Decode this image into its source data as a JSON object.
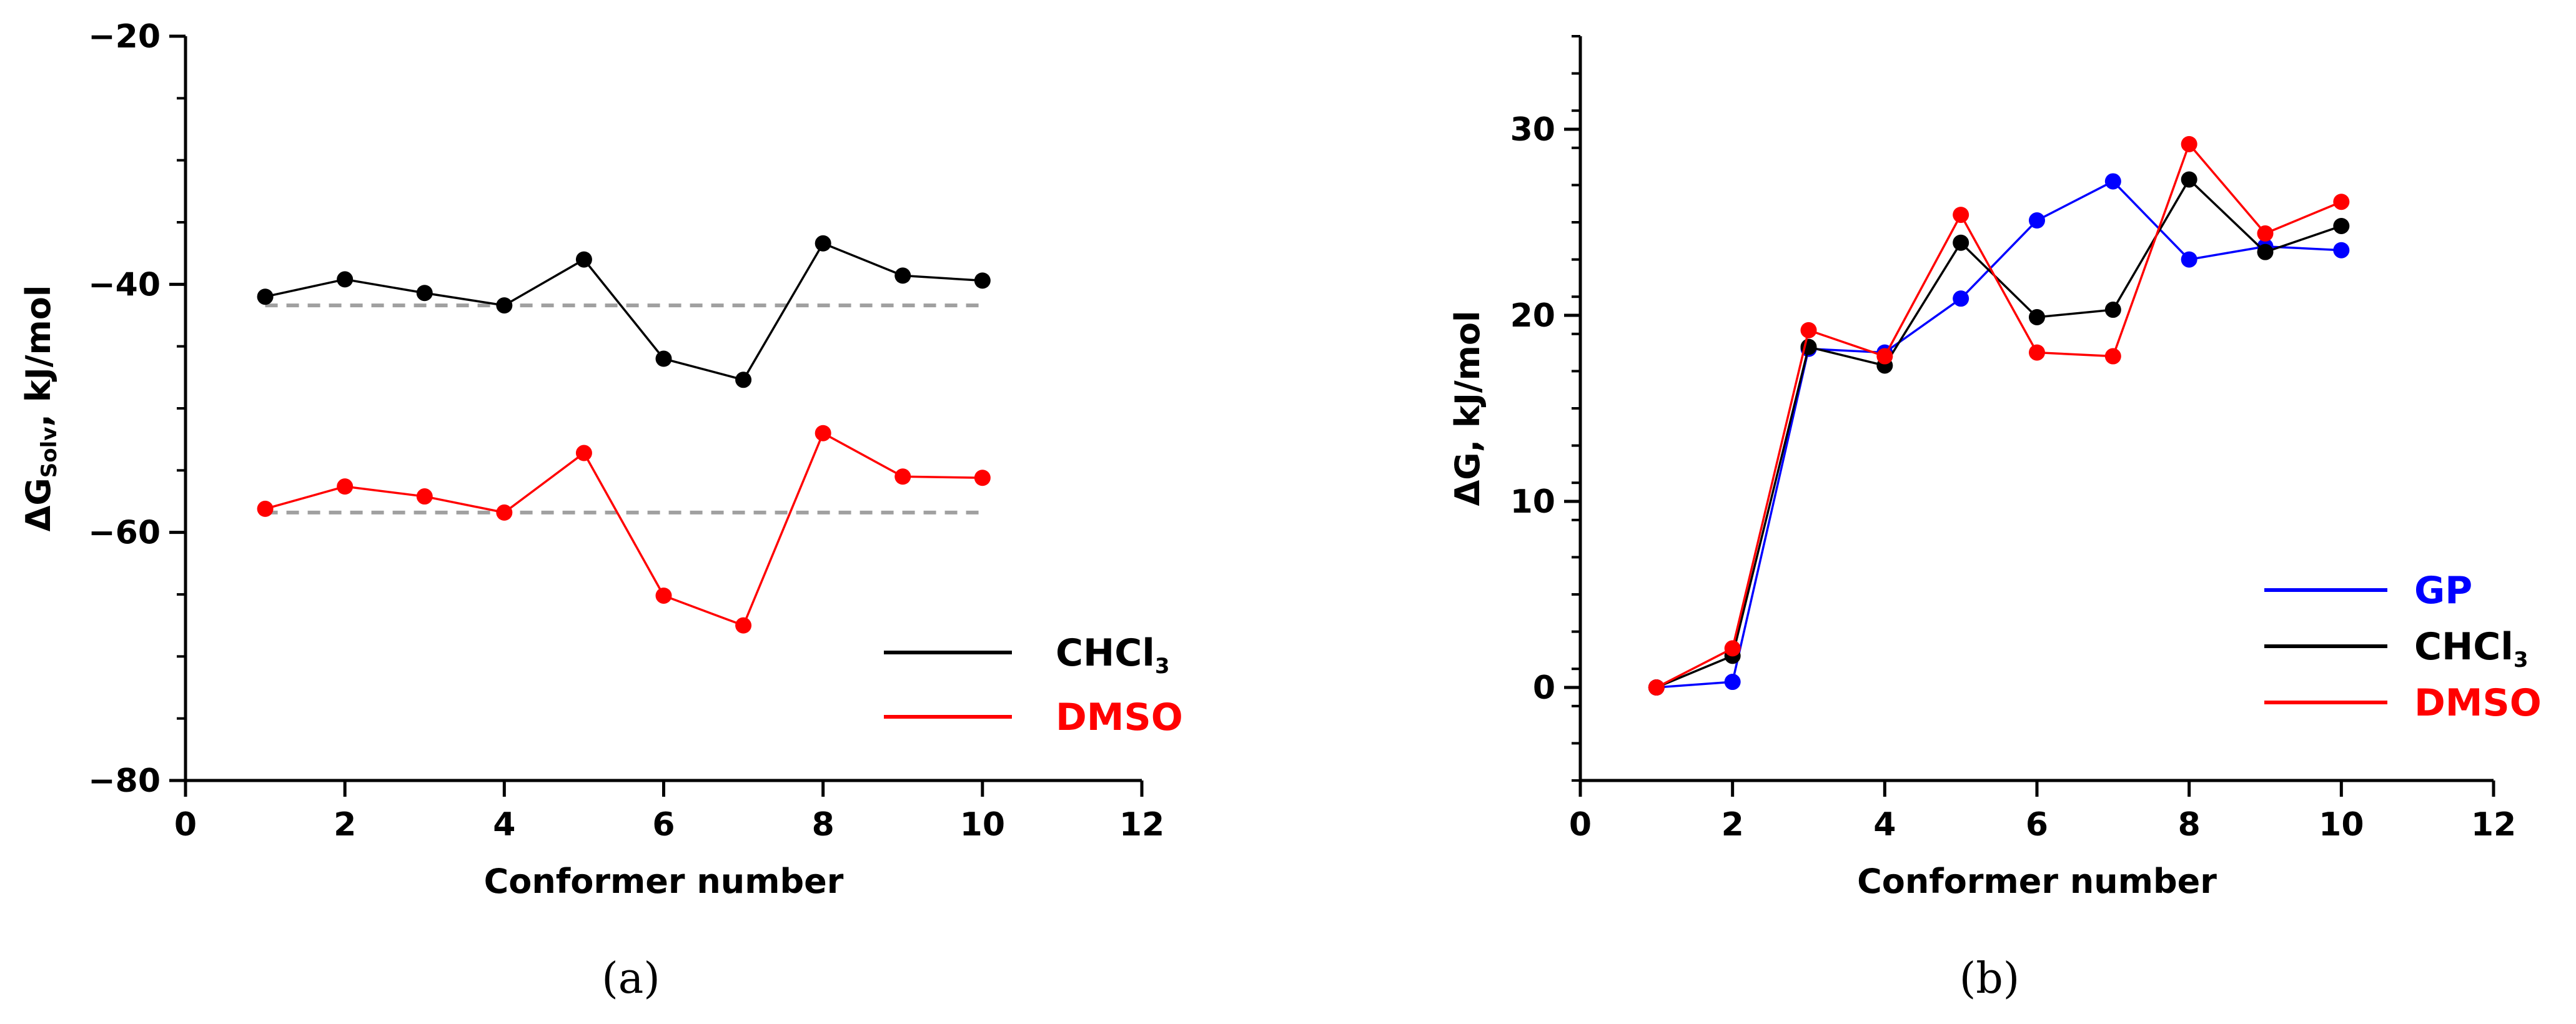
{
  "colors": {
    "chcl3": "#000000",
    "dmso": "#ff0000",
    "gp": "#0000ff",
    "reference": "#a0a0a0"
  },
  "panels": [
    {
      "caption": "(a)"
    },
    {
      "caption": "(b)"
    }
  ],
  "chart_data": [
    {
      "type": "line",
      "panel": "a",
      "xlabel": "Conformer number",
      "ylabel_main": "ΔG",
      "ylabel_sub": "Solv",
      "ylabel_tail": ", kJ/mol",
      "xlim": [
        0,
        12
      ],
      "ylim": [
        -80,
        -20
      ],
      "x_ticks": [
        0,
        2,
        4,
        6,
        8,
        10,
        12
      ],
      "x_tick_labels": [
        "0",
        "2",
        "4",
        "6",
        "8",
        "10",
        "12"
      ],
      "y_ticks": [
        -80,
        -60,
        -40,
        -20
      ],
      "y_tick_labels": [
        "−80",
        "−60",
        "−40",
        "−20"
      ],
      "y_minor_step": 5,
      "grid": false,
      "legend_position": "bottom-right",
      "x": [
        1,
        2,
        3,
        4,
        5,
        6,
        7,
        8,
        9,
        10
      ],
      "series": [
        {
          "name": "CHCl",
          "name_sub": "3",
          "color": "#000000",
          "values": [
            -41.0,
            -39.6,
            -40.7,
            -41.7,
            -38.0,
            -46.0,
            -47.7,
            -36.7,
            -39.3,
            -39.7
          ]
        },
        {
          "name": "DMSO",
          "color": "#ff0000",
          "values": [
            -58.1,
            -56.3,
            -57.1,
            -58.4,
            -53.6,
            -65.1,
            -67.5,
            -52.0,
            -55.5,
            -55.6
          ]
        }
      ],
      "reference_lines": [
        {
          "y": -41.7,
          "x_from": 1,
          "x_to": 10,
          "color": "#a0a0a0",
          "style": "dashed"
        },
        {
          "y": -58.4,
          "x_from": 1,
          "x_to": 10,
          "color": "#a0a0a0",
          "style": "dashed"
        }
      ]
    },
    {
      "type": "line",
      "panel": "b",
      "xlabel": "Conformer number",
      "ylabel": "ΔG, kJ/mol",
      "xlim": [
        0,
        12
      ],
      "ylim": [
        -5,
        35
      ],
      "x_ticks": [
        0,
        2,
        4,
        6,
        8,
        10,
        12
      ],
      "x_tick_labels": [
        "0",
        "2",
        "4",
        "6",
        "8",
        "10",
        "12"
      ],
      "y_ticks": [
        0,
        10,
        20,
        30
      ],
      "y_tick_labels": [
        "0",
        "10",
        "20",
        "30"
      ],
      "y_minor_step": 2,
      "grid": false,
      "legend_position": "bottom-right",
      "x": [
        1,
        2,
        3,
        4,
        5,
        6,
        7,
        8,
        9,
        10
      ],
      "series": [
        {
          "name": "GP",
          "color": "#0000ff",
          "values": [
            0.0,
            0.3,
            18.2,
            18.0,
            20.9,
            25.1,
            27.2,
            23.0,
            23.7,
            23.5
          ]
        },
        {
          "name": "CHCl",
          "name_sub": "3",
          "color": "#000000",
          "values": [
            0.0,
            1.7,
            18.3,
            17.3,
            23.9,
            19.9,
            20.3,
            27.3,
            23.4,
            24.8
          ]
        },
        {
          "name": "DMSO",
          "color": "#ff0000",
          "values": [
            0.0,
            2.1,
            19.2,
            17.8,
            25.4,
            18.0,
            17.8,
            29.2,
            24.4,
            26.1
          ]
        }
      ]
    }
  ]
}
